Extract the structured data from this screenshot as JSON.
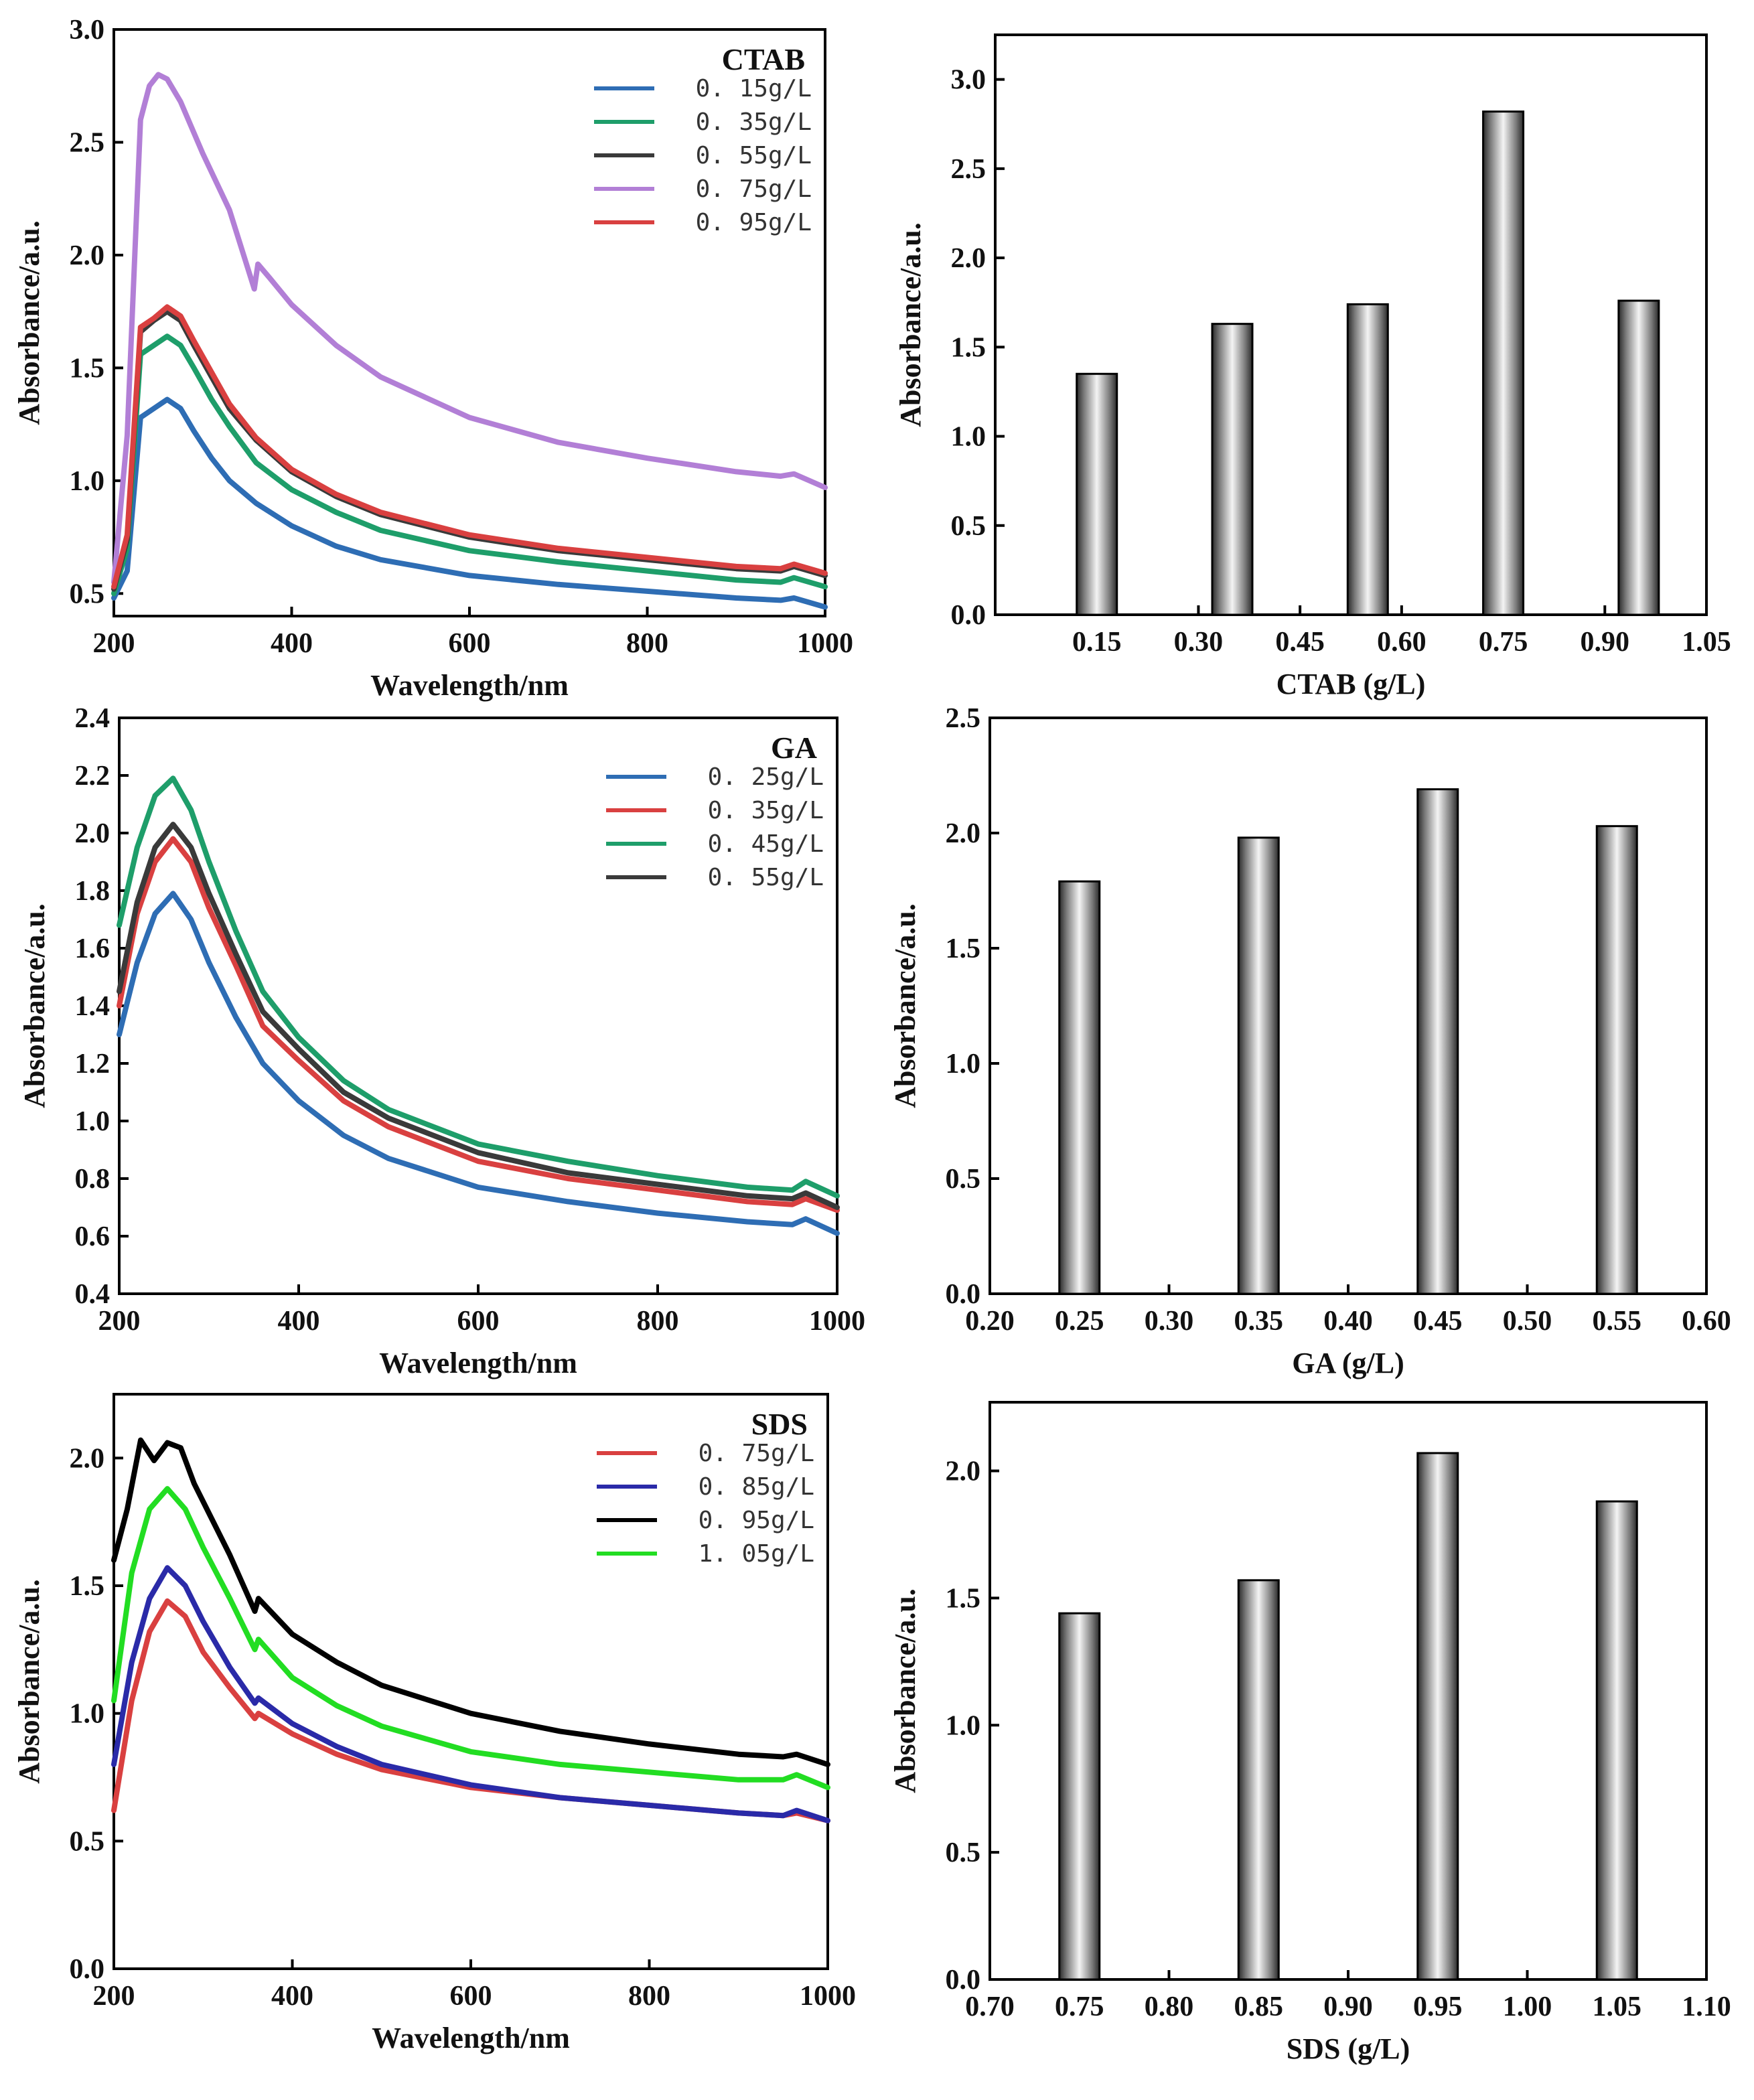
{
  "colors": {
    "blue": "#2E6DB4",
    "green": "#1E9E6A",
    "dark": "#3A3A3A",
    "purple": "#B27FD6",
    "red": "#D94040",
    "navy": "#2A2AA8",
    "black": "#000000",
    "lime": "#22DD22"
  },
  "chart_data": [
    {
      "type": "line",
      "legend_title": "CTAB",
      "legend_position": "top-right",
      "xlabel": "Wavelength/nm",
      "ylabel": "Absorbance/a.u.",
      "xlim": [
        200,
        1000
      ],
      "ylim": [
        0.4,
        3.0
      ],
      "xticks": [
        "200",
        "400",
        "600",
        "800",
        "1000"
      ],
      "yticks": [
        "0.5",
        "1.0",
        "1.5",
        "2.0",
        "2.5",
        "3.0"
      ],
      "grid": false,
      "series": [
        {
          "name": "0. 15g/L",
          "color": "#2E6DB4",
          "x": [
            200,
            215,
            230,
            245,
            260,
            275,
            290,
            310,
            330,
            360,
            400,
            450,
            500,
            600,
            700,
            800,
            900,
            950,
            965,
            1000
          ],
          "y": [
            0.48,
            0.6,
            1.28,
            1.32,
            1.36,
            1.32,
            1.22,
            1.1,
            1.0,
            0.9,
            0.8,
            0.71,
            0.65,
            0.58,
            0.54,
            0.51,
            0.48,
            0.47,
            0.48,
            0.44
          ]
        },
        {
          "name": "0. 35g/L",
          "color": "#1E9E6A",
          "x": [
            200,
            215,
            230,
            245,
            260,
            275,
            290,
            310,
            330,
            360,
            400,
            450,
            500,
            600,
            700,
            800,
            900,
            950,
            965,
            1000
          ],
          "y": [
            0.5,
            0.7,
            1.56,
            1.6,
            1.64,
            1.6,
            1.5,
            1.36,
            1.24,
            1.08,
            0.96,
            0.86,
            0.78,
            0.69,
            0.64,
            0.6,
            0.56,
            0.55,
            0.57,
            0.53
          ]
        },
        {
          "name": "0. 55g/L",
          "color": "#3A3A3A",
          "x": [
            200,
            215,
            230,
            245,
            260,
            275,
            290,
            310,
            330,
            360,
            400,
            450,
            500,
            600,
            700,
            800,
            900,
            950,
            965,
            1000
          ],
          "y": [
            0.52,
            0.74,
            1.66,
            1.71,
            1.75,
            1.71,
            1.6,
            1.46,
            1.32,
            1.18,
            1.04,
            0.93,
            0.85,
            0.75,
            0.69,
            0.65,
            0.61,
            0.6,
            0.62,
            0.58
          ]
        },
        {
          "name": "0. 75g/L",
          "color": "#B27FD6",
          "x": [
            200,
            215,
            230,
            240,
            250,
            260,
            275,
            300,
            330,
            358,
            362,
            375,
            400,
            450,
            500,
            600,
            700,
            800,
            900,
            950,
            965,
            1000
          ],
          "y": [
            0.55,
            1.2,
            2.6,
            2.75,
            2.8,
            2.78,
            2.68,
            2.45,
            2.2,
            1.85,
            1.96,
            1.9,
            1.78,
            1.6,
            1.46,
            1.28,
            1.17,
            1.1,
            1.04,
            1.02,
            1.03,
            0.97
          ]
        },
        {
          "name": "0. 95g/L",
          "color": "#D94040",
          "x": [
            200,
            215,
            230,
            245,
            260,
            275,
            290,
            310,
            330,
            360,
            400,
            450,
            500,
            600,
            700,
            800,
            900,
            950,
            965,
            1000
          ],
          "y": [
            0.53,
            0.76,
            1.68,
            1.72,
            1.77,
            1.73,
            1.62,
            1.48,
            1.34,
            1.19,
            1.05,
            0.94,
            0.86,
            0.76,
            0.7,
            0.66,
            0.62,
            0.61,
            0.63,
            0.59
          ]
        }
      ]
    },
    {
      "type": "bar",
      "xlabel": "CTAB (g/L)",
      "ylabel": "Absorbance/a.u.",
      "xlim": [
        0.0,
        1.05
      ],
      "ylim": [
        0.0,
        3.25
      ],
      "xticks": [
        "0.15",
        "0.30",
        "0.45",
        "0.60",
        "0.75",
        "0.90",
        "1.05"
      ],
      "yticks": [
        "0.0",
        "0.5",
        "1.0",
        "1.5",
        "2.0",
        "2.5",
        "3.0"
      ],
      "x": [
        0.15,
        0.35,
        0.55,
        0.75,
        0.95
      ],
      "values": [
        1.35,
        1.63,
        1.74,
        2.82,
        1.76
      ]
    },
    {
      "type": "line",
      "legend_title": "GA",
      "legend_position": "top-right",
      "xlabel": "Wavelength/nm",
      "ylabel": "Absorbance/a.u.",
      "xlim": [
        200,
        1000
      ],
      "ylim": [
        0.4,
        2.4
      ],
      "xticks": [
        "200",
        "400",
        "600",
        "800",
        "1000"
      ],
      "yticks": [
        "0.4",
        "0.6",
        "0.8",
        "1.0",
        "1.2",
        "1.4",
        "1.6",
        "1.8",
        "2.0",
        "2.2",
        "2.4"
      ],
      "grid": false,
      "series": [
        {
          "name": "0. 25g/L",
          "color": "#2E6DB4",
          "x": [
            200,
            220,
            240,
            260,
            280,
            300,
            330,
            360,
            400,
            450,
            500,
            600,
            700,
            800,
            900,
            950,
            965,
            1000
          ],
          "y": [
            1.3,
            1.55,
            1.72,
            1.79,
            1.7,
            1.55,
            1.36,
            1.2,
            1.07,
            0.95,
            0.87,
            0.77,
            0.72,
            0.68,
            0.65,
            0.64,
            0.66,
            0.61
          ]
        },
        {
          "name": "0. 35g/L",
          "color": "#D94040",
          "x": [
            200,
            220,
            240,
            260,
            280,
            300,
            330,
            360,
            400,
            450,
            500,
            600,
            700,
            800,
            900,
            950,
            965,
            1000
          ],
          "y": [
            1.4,
            1.72,
            1.9,
            1.98,
            1.9,
            1.74,
            1.54,
            1.33,
            1.21,
            1.07,
            0.98,
            0.86,
            0.8,
            0.76,
            0.72,
            0.71,
            0.73,
            0.69
          ]
        },
        {
          "name": "0. 45g/L",
          "color": "#1E9E6A",
          "x": [
            200,
            220,
            240,
            260,
            280,
            300,
            330,
            360,
            400,
            450,
            500,
            600,
            700,
            800,
            900,
            950,
            965,
            1000
          ],
          "y": [
            1.68,
            1.95,
            2.13,
            2.19,
            2.08,
            1.9,
            1.66,
            1.45,
            1.29,
            1.14,
            1.04,
            0.92,
            0.86,
            0.81,
            0.77,
            0.76,
            0.79,
            0.74
          ]
        },
        {
          "name": "0. 55g/L",
          "color": "#3A3A3A",
          "x": [
            200,
            220,
            240,
            260,
            280,
            300,
            330,
            360,
            400,
            450,
            500,
            600,
            700,
            800,
            900,
            950,
            965,
            1000
          ],
          "y": [
            1.45,
            1.76,
            1.95,
            2.03,
            1.95,
            1.79,
            1.58,
            1.38,
            1.25,
            1.1,
            1.01,
            0.89,
            0.82,
            0.78,
            0.74,
            0.73,
            0.75,
            0.7
          ]
        }
      ]
    },
    {
      "type": "bar",
      "xlabel": "GA (g/L)",
      "ylabel": "Absorbance/a.u.",
      "xlim": [
        0.2,
        0.6
      ],
      "ylim": [
        0.0,
        2.5
      ],
      "xticks": [
        "0.20",
        "0.25",
        "0.30",
        "0.35",
        "0.40",
        "0.45",
        "0.50",
        "0.55",
        "0.60"
      ],
      "yticks": [
        "0.0",
        "0.5",
        "1.0",
        "1.5",
        "2.0",
        "2.5"
      ],
      "x": [
        0.25,
        0.35,
        0.45,
        0.55
      ],
      "values": [
        1.79,
        1.98,
        2.19,
        2.03
      ]
    },
    {
      "type": "line",
      "legend_title": "SDS",
      "legend_position": "top-right",
      "xlabel": "Wavelength/nm",
      "ylabel": "Absorbance/a.u.",
      "xlim": [
        200,
        1000
      ],
      "ylim": [
        0.0,
        2.25
      ],
      "xticks": [
        "200",
        "400",
        "600",
        "800",
        "1000"
      ],
      "yticks": [
        "0.0",
        "0.5",
        "1.0",
        "1.5",
        "2.0"
      ],
      "grid": false,
      "series": [
        {
          "name": "0. 75g/L",
          "color": "#D94040",
          "x": [
            200,
            220,
            240,
            260,
            280,
            300,
            330,
            358,
            362,
            400,
            450,
            500,
            600,
            700,
            800,
            900,
            950,
            965,
            1000
          ],
          "y": [
            0.62,
            1.05,
            1.32,
            1.44,
            1.38,
            1.24,
            1.1,
            0.98,
            1.0,
            0.92,
            0.84,
            0.78,
            0.71,
            0.67,
            0.64,
            0.61,
            0.6,
            0.61,
            0.58
          ]
        },
        {
          "name": "0. 85g/L",
          "color": "#2A2AA8",
          "x": [
            200,
            220,
            240,
            260,
            280,
            300,
            330,
            358,
            362,
            400,
            450,
            500,
            600,
            700,
            800,
            900,
            950,
            965,
            1000
          ],
          "y": [
            0.8,
            1.2,
            1.45,
            1.57,
            1.5,
            1.36,
            1.18,
            1.04,
            1.06,
            0.96,
            0.87,
            0.8,
            0.72,
            0.67,
            0.64,
            0.61,
            0.6,
            0.62,
            0.58
          ]
        },
        {
          "name": "0. 95g/L",
          "color": "#000000",
          "x": [
            200,
            215,
            230,
            245,
            260,
            275,
            290,
            310,
            330,
            358,
            362,
            400,
            450,
            500,
            600,
            700,
            800,
            900,
            950,
            965,
            1000
          ],
          "y": [
            1.6,
            1.8,
            2.07,
            1.99,
            2.06,
            2.04,
            1.9,
            1.76,
            1.62,
            1.4,
            1.45,
            1.31,
            1.2,
            1.11,
            1.0,
            0.93,
            0.88,
            0.84,
            0.83,
            0.84,
            0.8
          ]
        },
        {
          "name": "1. 05g/L",
          "color": "#22DD22",
          "x": [
            200,
            220,
            240,
            260,
            280,
            300,
            330,
            358,
            362,
            400,
            450,
            500,
            600,
            700,
            800,
            900,
            950,
            965,
            1000
          ],
          "y": [
            1.05,
            1.55,
            1.8,
            1.88,
            1.8,
            1.65,
            1.45,
            1.25,
            1.29,
            1.14,
            1.03,
            0.95,
            0.85,
            0.8,
            0.77,
            0.74,
            0.74,
            0.76,
            0.71
          ]
        }
      ]
    },
    {
      "type": "bar",
      "xlabel": "SDS (g/L)",
      "ylabel": "Absorbance/a.u.",
      "xlim": [
        0.7,
        1.1
      ],
      "ylim": [
        0.0,
        2.27
      ],
      "xticks": [
        "0.70",
        "0.75",
        "0.80",
        "0.85",
        "0.90",
        "0.95",
        "1.00",
        "1.05",
        "1.10"
      ],
      "yticks": [
        "0.0",
        "0.5",
        "1.0",
        "1.5",
        "2.0"
      ],
      "x": [
        0.75,
        0.85,
        0.95,
        1.05
      ],
      "values": [
        1.44,
        1.57,
        2.07,
        1.88
      ]
    }
  ]
}
